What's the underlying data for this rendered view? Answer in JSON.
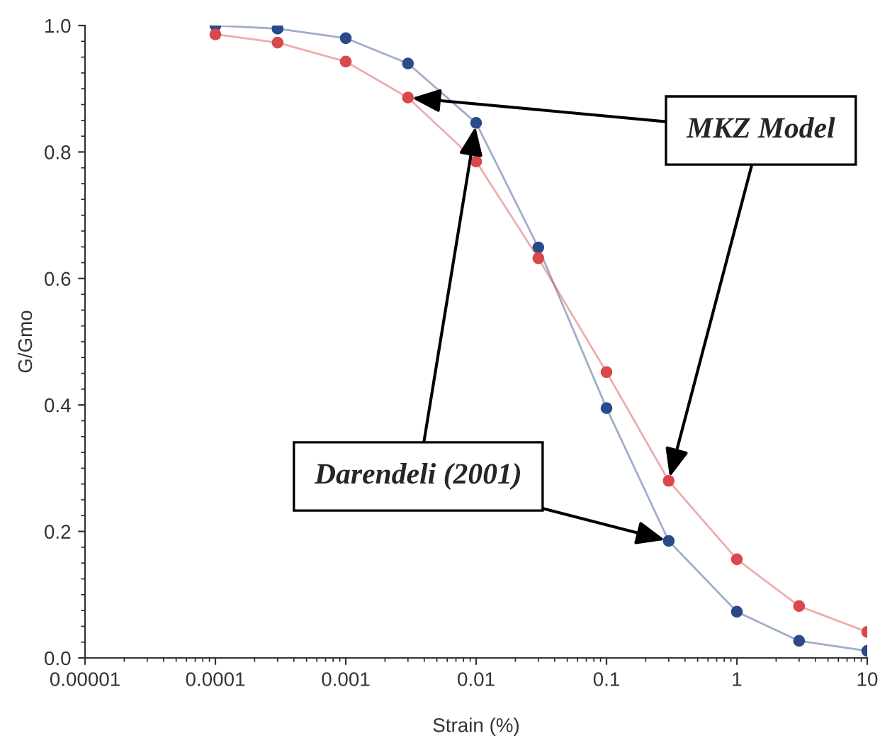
{
  "chart_data": {
    "type": "line",
    "xlabel": "Strain (%)",
    "ylabel": "G/Gmo",
    "log": "x",
    "x": [
      0.0001,
      0.0003,
      0.001,
      0.003,
      0.01,
      0.03,
      0.1,
      0.3,
      1,
      3,
      10
    ],
    "series": [
      {
        "name": "Darendeli (2001)",
        "color": "#2a4a8a",
        "values": [
          1.0,
          0.995,
          0.98,
          0.94,
          0.846,
          0.649,
          0.395,
          0.185,
          0.073,
          0.027,
          0.011
        ]
      },
      {
        "name": "MKZ Model",
        "color": "#d9484a",
        "values": [
          0.986,
          0.973,
          0.943,
          0.886,
          0.785,
          0.632,
          0.452,
          0.28,
          0.156,
          0.082,
          0.041
        ]
      }
    ],
    "xlim": [
      1e-05,
      10
    ],
    "ylim": [
      0,
      1
    ],
    "xticks": [
      {
        "value": 1e-05,
        "label": "0.00001"
      },
      {
        "value": 0.0001,
        "label": "0.0001"
      },
      {
        "value": 0.001,
        "label": "0.001"
      },
      {
        "value": 0.01,
        "label": "0.01"
      },
      {
        "value": 0.1,
        "label": "0.1"
      },
      {
        "value": 1,
        "label": "1"
      },
      {
        "value": 10,
        "label": "10"
      }
    ],
    "yticks": [
      {
        "value": 0,
        "label": "0.0"
      },
      {
        "value": 0.2,
        "label": "0.2"
      },
      {
        "value": 0.4,
        "label": "0.4"
      },
      {
        "value": 0.6,
        "label": "0.6"
      },
      {
        "value": 0.8,
        "label": "0.8"
      },
      {
        "value": 1,
        "label": "1.0"
      }
    ],
    "marker": "circle",
    "line_style": "solid",
    "grid": false
  }
}
